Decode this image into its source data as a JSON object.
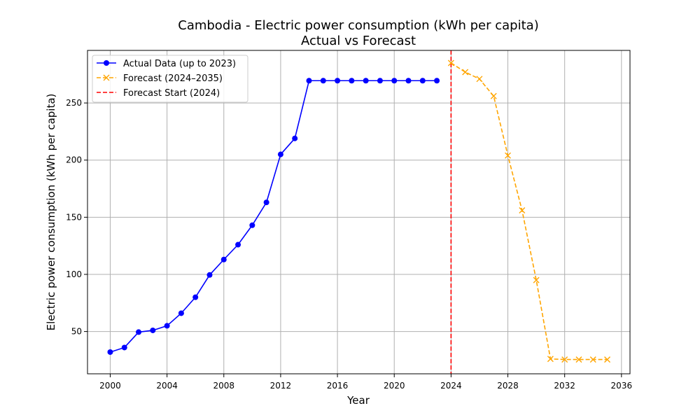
{
  "chart_data": {
    "type": "line",
    "title": "Cambodia - Electric power consumption (kWh per capita)",
    "subtitle": "Actual vs Forecast",
    "xlabel": "Year",
    "ylabel": "Electric power consumption (kWh per capita)",
    "xlim": [
      1998.4,
      2036.6
    ],
    "ylim": [
      13,
      296
    ],
    "xticks": [
      2000,
      2004,
      2008,
      2012,
      2016,
      2020,
      2024,
      2028,
      2032,
      2036
    ],
    "yticks": [
      50,
      100,
      150,
      200,
      250
    ],
    "grid": true,
    "legend_position": "top-left",
    "series": [
      {
        "name": "Actual Data (up to 2023)",
        "color": "#0000ff",
        "style": "solid",
        "marker": "circle",
        "x": [
          2000,
          2001,
          2002,
          2003,
          2004,
          2005,
          2006,
          2007,
          2008,
          2009,
          2010,
          2011,
          2012,
          2013,
          2014,
          2015,
          2016,
          2017,
          2018,
          2019,
          2020,
          2021,
          2022,
          2023
        ],
        "y": [
          32,
          36,
          49.5,
          51,
          55,
          66,
          80,
          99.5,
          113,
          126,
          143,
          163,
          205,
          219,
          269.5,
          269.5,
          269.5,
          269.5,
          269.5,
          269.5,
          269.5,
          269.5,
          269.5,
          269.5
        ]
      },
      {
        "name": "Forecast (2024–2035)",
        "color": "#ffa500",
        "style": "dashed",
        "marker": "x",
        "x": [
          2024,
          2025,
          2026,
          2027,
          2028,
          2029,
          2030,
          2031,
          2032,
          2033,
          2034,
          2035
        ],
        "y": [
          285,
          277,
          271,
          256,
          204,
          156,
          95,
          26,
          25.5,
          25.5,
          25.5,
          25.5
        ]
      }
    ],
    "vline": {
      "name": "Forecast Start (2024)",
      "x": 2024,
      "color": "#ff0000",
      "style": "dashed"
    }
  }
}
